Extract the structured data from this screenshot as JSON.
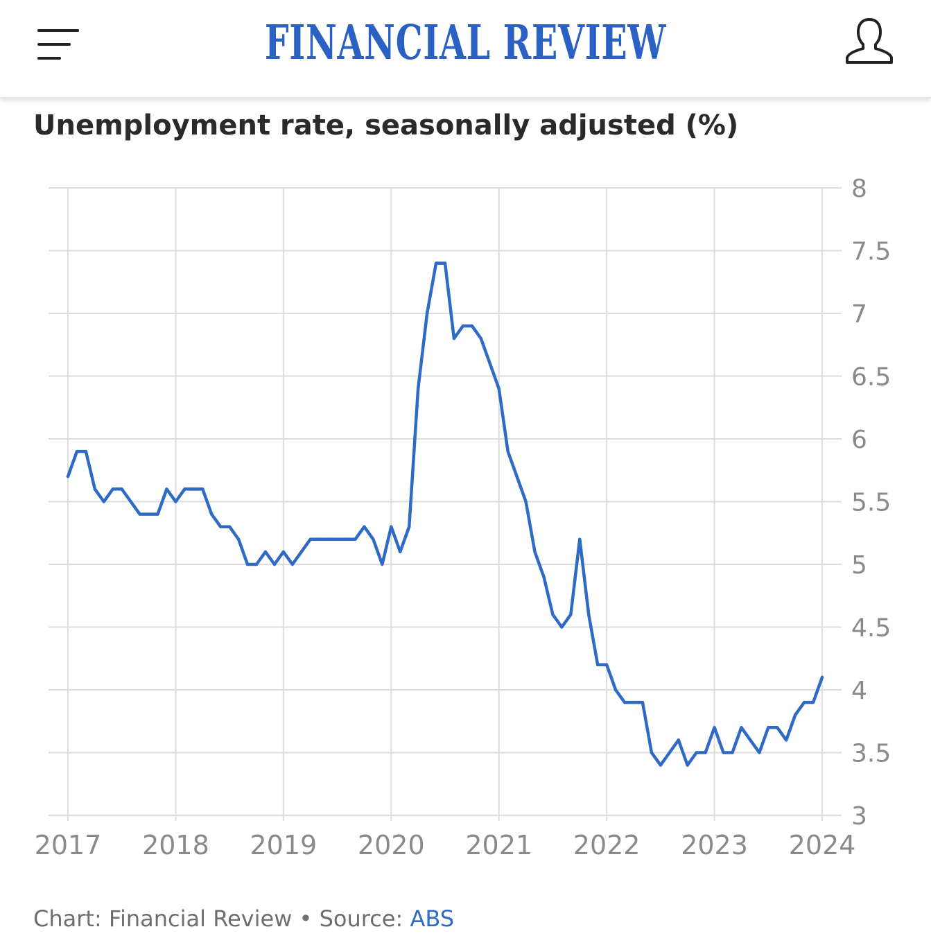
{
  "header": {
    "logo_text": "FINANCIAL REVIEW",
    "menu_icon": "menu-icon",
    "account_icon": "user-icon",
    "brand_color": "#2b60c4"
  },
  "chart_title": "Unemployment rate, seasonally adjusted (%)",
  "footer": {
    "credit": "Chart: Financial Review",
    "separator": " • ",
    "source_label": "Source: ",
    "source_link": "ABS"
  },
  "chart_data": {
    "type": "line",
    "title": "Unemployment rate, seasonally adjusted (%)",
    "xlabel": "",
    "ylabel": "",
    "x_ticks": [
      "2017",
      "2018",
      "2019",
      "2020",
      "2021",
      "2022",
      "2023",
      "2024"
    ],
    "y_ticks": [
      "3",
      "3.5",
      "4",
      "4.5",
      "5",
      "5.5",
      "6",
      "6.5",
      "7",
      "7.5",
      "8"
    ],
    "ylim": [
      3,
      8
    ],
    "xlim": [
      "2017-01",
      "2024-01"
    ],
    "y_axis_side": "right",
    "grid": true,
    "line_color": "#2f6bc6",
    "series": [
      {
        "x": [
          "2017-01",
          "2017-02",
          "2017-03",
          "2017-04",
          "2017-05",
          "2017-06",
          "2017-07",
          "2017-08",
          "2017-09",
          "2017-10",
          "2017-11",
          "2017-12",
          "2018-01",
          "2018-02",
          "2018-03",
          "2018-04",
          "2018-05",
          "2018-06",
          "2018-07",
          "2018-08",
          "2018-09",
          "2018-10",
          "2018-11",
          "2018-12",
          "2019-01",
          "2019-02",
          "2019-03",
          "2019-04",
          "2019-05",
          "2019-06",
          "2019-07",
          "2019-08",
          "2019-09",
          "2019-10",
          "2019-11",
          "2019-12",
          "2020-01",
          "2020-02",
          "2020-03",
          "2020-04",
          "2020-05",
          "2020-06",
          "2020-07",
          "2020-08",
          "2020-09",
          "2020-10",
          "2020-11",
          "2020-12",
          "2021-01",
          "2021-02",
          "2021-03",
          "2021-04",
          "2021-05",
          "2021-06",
          "2021-07",
          "2021-08",
          "2021-09",
          "2021-10",
          "2021-11",
          "2021-12",
          "2022-01",
          "2022-02",
          "2022-03",
          "2022-04",
          "2022-05",
          "2022-06",
          "2022-07",
          "2022-08",
          "2022-09",
          "2022-10",
          "2022-11",
          "2022-12",
          "2023-01",
          "2023-02",
          "2023-03",
          "2023-04",
          "2023-05",
          "2023-06",
          "2023-07",
          "2023-08",
          "2023-09",
          "2023-10",
          "2023-11",
          "2023-12",
          "2024-01"
        ],
        "values": [
          5.7,
          5.9,
          5.9,
          5.6,
          5.5,
          5.6,
          5.6,
          5.5,
          5.4,
          5.4,
          5.4,
          5.6,
          5.5,
          5.6,
          5.6,
          5.6,
          5.4,
          5.3,
          5.3,
          5.2,
          5.0,
          5.0,
          5.1,
          5.0,
          5.1,
          5.0,
          5.1,
          5.2,
          5.2,
          5.2,
          5.2,
          5.2,
          5.2,
          5.3,
          5.2,
          5.0,
          5.3,
          5.1,
          5.3,
          6.4,
          7.0,
          7.4,
          7.4,
          6.8,
          6.9,
          6.9,
          6.8,
          6.6,
          6.4,
          5.9,
          5.7,
          5.5,
          5.1,
          4.9,
          4.6,
          4.5,
          4.6,
          5.2,
          4.6,
          4.2,
          4.2,
          4.0,
          3.9,
          3.9,
          3.9,
          3.5,
          3.4,
          3.5,
          3.6,
          3.4,
          3.5,
          3.5,
          3.7,
          3.5,
          3.5,
          3.7,
          3.6,
          3.5,
          3.7,
          3.7,
          3.6,
          3.8,
          3.9,
          3.9,
          4.1
        ]
      }
    ]
  }
}
